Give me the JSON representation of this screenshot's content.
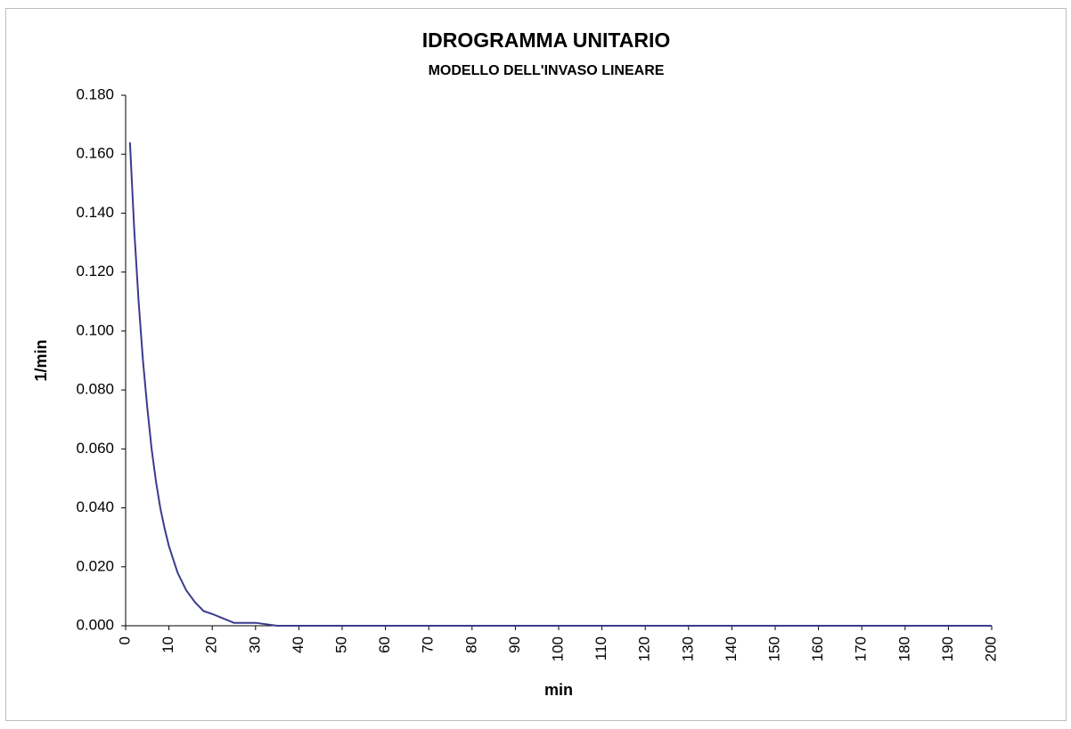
{
  "chart_data": {
    "type": "line",
    "title": "IDROGRAMMA UNITARIO",
    "subtitle": "MODELLO DELL'INVASO LINEARE",
    "x_label": "min",
    "y_label": "1/min",
    "x": [
      1,
      2,
      3,
      4,
      5,
      6,
      7,
      8,
      9,
      10,
      12,
      14,
      16,
      18,
      20,
      25,
      30,
      35,
      50,
      100,
      150,
      200
    ],
    "series": [
      {
        "name": "1/min",
        "color": "#3b3b8f",
        "values": [
          0.164,
          0.134,
          0.11,
          0.09,
          0.074,
          0.06,
          0.049,
          0.04,
          0.033,
          0.027,
          0.018,
          0.012,
          0.008,
          0.005,
          0.004,
          0.001,
          0.001,
          0,
          0,
          0,
          0,
          0
        ]
      }
    ],
    "xlim": [
      0,
      200
    ],
    "xticks": [
      0,
      10,
      20,
      30,
      40,
      50,
      60,
      70,
      80,
      90,
      100,
      110,
      120,
      130,
      140,
      150,
      160,
      170,
      180,
      190,
      200
    ],
    "ylim": [
      0,
      0.18
    ],
    "yticks": [
      {
        "value": 0,
        "label": "0.000"
      },
      {
        "value": 0.02,
        "label": "0.020"
      },
      {
        "value": 0.04,
        "label": "0.040"
      },
      {
        "value": 0.06,
        "label": "0.060"
      },
      {
        "value": 0.08,
        "label": "0.080"
      },
      {
        "value": 0.1,
        "label": "0.100"
      },
      {
        "value": 0.12,
        "label": "0.120"
      },
      {
        "value": 0.14,
        "label": "0.140"
      },
      {
        "value": 0.16,
        "label": "0.160"
      },
      {
        "value": 0.18,
        "label": "0.180"
      }
    ],
    "grid": false
  }
}
